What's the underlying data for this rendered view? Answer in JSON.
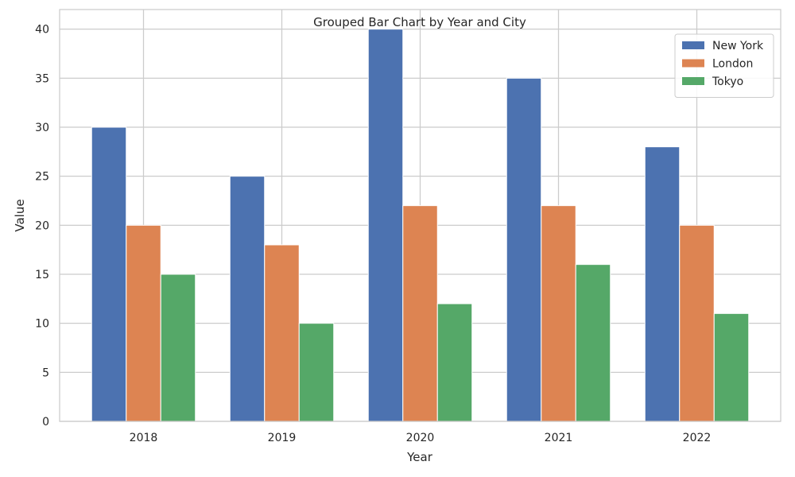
{
  "chart_data": {
    "type": "bar",
    "title": "Grouped Bar Chart by Year and City",
    "xlabel": "Year",
    "ylabel": "Value",
    "categories": [
      "2018",
      "2019",
      "2020",
      "2021",
      "2022"
    ],
    "series": [
      {
        "name": "New York",
        "color": "#4c72b0",
        "values": [
          30,
          25,
          40,
          35,
          28
        ]
      },
      {
        "name": "London",
        "color": "#dd8452",
        "values": [
          20,
          18,
          22,
          22,
          20
        ]
      },
      {
        "name": "Tokyo",
        "color": "#55a868",
        "values": [
          15,
          10,
          12,
          16,
          11
        ]
      }
    ],
    "ylim": [
      0,
      42
    ],
    "yticks": [
      0,
      5,
      10,
      15,
      20,
      25,
      30,
      35,
      40
    ],
    "grid": true,
    "legend": "top-right"
  }
}
